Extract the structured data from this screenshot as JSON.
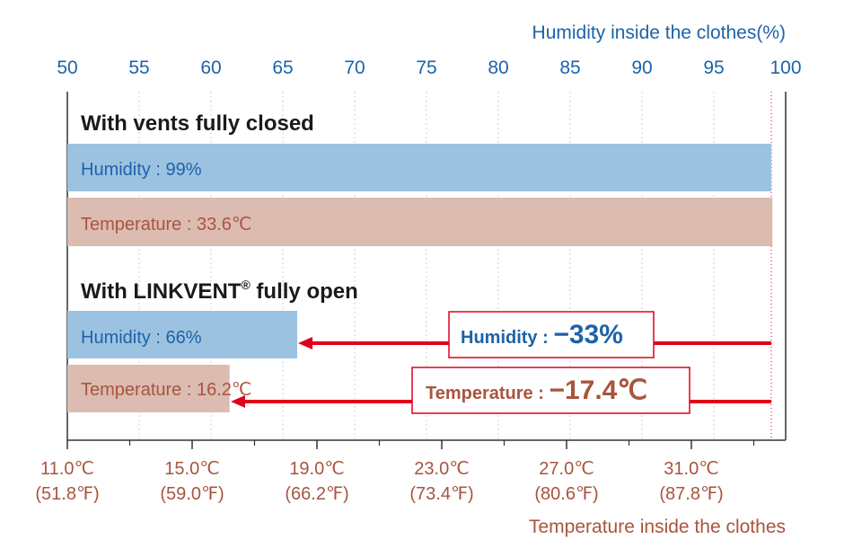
{
  "chart_data": {
    "type": "bar",
    "top_axis": {
      "title": "Humidity inside the clothes(%)",
      "min": 50,
      "max": 100,
      "ticks": [
        "50",
        "55",
        "60",
        "65",
        "70",
        "75",
        "80",
        "85",
        "90",
        "95",
        "100"
      ]
    },
    "bottom_axis": {
      "title": "Temperature inside the clothes",
      "ticks": [
        {
          "c": "11.0℃",
          "f": "(51.8℉)"
        },
        {
          "c": "15.0℃",
          "f": "(59.0℉)"
        },
        {
          "c": "19.0℃",
          "f": "(66.2℉)"
        },
        {
          "c": "23.0℃",
          "f": "(73.4℉)"
        },
        {
          "c": "27.0℃",
          "f": "(80.6℉)"
        },
        {
          "c": "31.0℃",
          "f": "(87.8℉)"
        }
      ]
    },
    "groups": [
      {
        "title": "With vents fully closed",
        "title_suffix": "",
        "bars": [
          {
            "kind": "humidity",
            "label": "Humidity : 99%",
            "value": 99,
            "unit": "%"
          },
          {
            "kind": "temperature",
            "label": "Temperature : 33.6℃",
            "value": 33.6,
            "unit": "℃"
          }
        ]
      },
      {
        "title": "With LINKVENT",
        "title_suffix": "®",
        "title_end": " fully open",
        "bars": [
          {
            "kind": "humidity",
            "label": "Humidity : 66%",
            "value": 66,
            "unit": "%"
          },
          {
            "kind": "temperature",
            "label": "Temperature : 16.2℃",
            "value": 16.2,
            "unit": "℃"
          }
        ]
      }
    ],
    "callouts": [
      {
        "kind": "humidity",
        "label": "Humidity : ",
        "value": "−33%"
      },
      {
        "kind": "temperature",
        "label": "Temperature : ",
        "value": "−17.4℃"
      }
    ],
    "colors": {
      "humidity_bar": "#9cc2e2",
      "humidity_text": "#1d63a8",
      "temperature_bar": "#dcbbb1",
      "temperature_text": "#a8553e",
      "axis_top": "#1d63a8",
      "axis_bottom": "#a8553e",
      "arrow": "#e0001b",
      "title": "#1a1a1a"
    }
  }
}
